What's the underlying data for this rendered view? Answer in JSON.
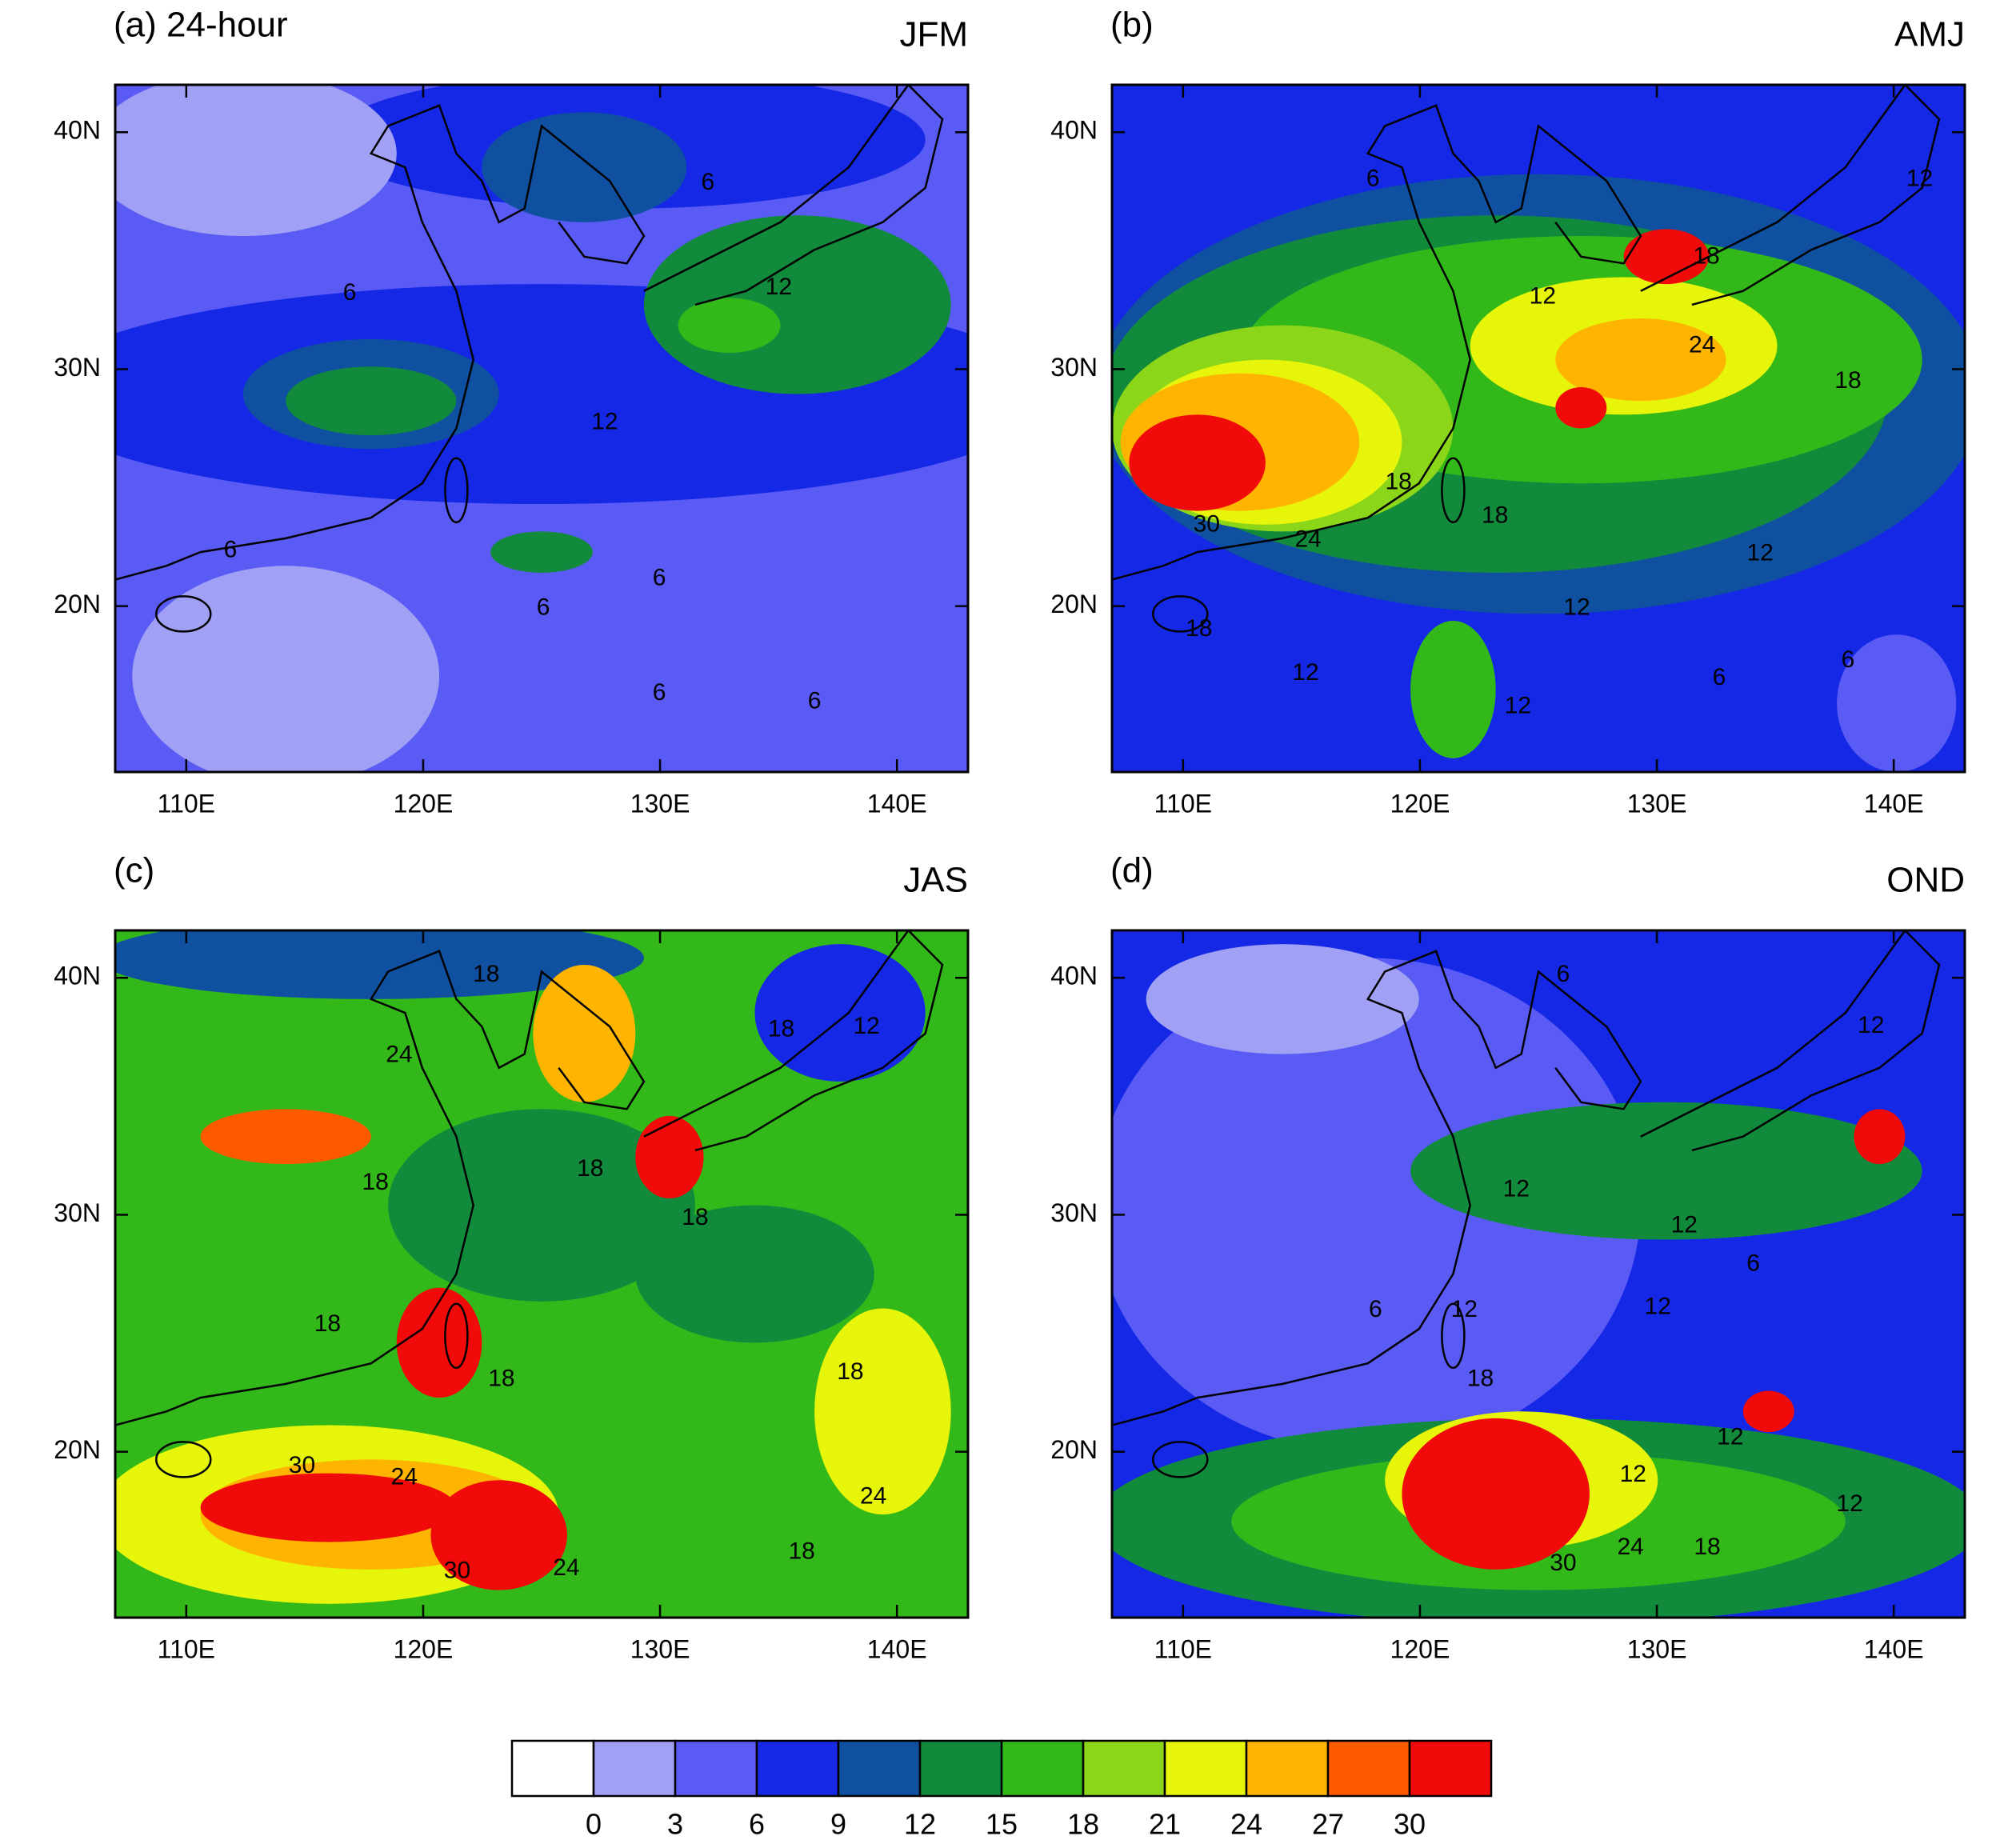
{
  "xlim": [
    107,
    143
  ],
  "ylim": [
    13,
    42
  ],
  "xticks": [
    {
      "value": 110,
      "label": "110E"
    },
    {
      "value": 120,
      "label": "120E"
    },
    {
      "value": 130,
      "label": "130E"
    },
    {
      "value": 140,
      "label": "140E"
    }
  ],
  "yticks": [
    {
      "value": 20,
      "label": "20N"
    },
    {
      "value": 30,
      "label": "30N"
    },
    {
      "value": 40,
      "label": "40N"
    }
  ],
  "panels": [
    {
      "label": "(a) 24-hour",
      "season": "JFM",
      "contour_labels": [
        6,
        12,
        6,
        12,
        6,
        6,
        6,
        6,
        6
      ]
    },
    {
      "label": "(b)",
      "season": "AMJ",
      "contour_labels": [
        6,
        12,
        18,
        12,
        24,
        18,
        18,
        18,
        30,
        24,
        12,
        12,
        18,
        12,
        6,
        6,
        12
      ]
    },
    {
      "label": "(c)",
      "season": "JAS",
      "contour_labels": [
        18,
        24,
        18,
        12,
        18,
        18,
        18,
        18,
        18,
        18,
        30,
        24,
        24,
        18,
        24,
        30
      ]
    },
    {
      "label": "(d)",
      "season": "OND",
      "contour_labels": [
        6,
        12,
        12,
        12,
        6,
        6,
        12,
        12,
        18,
        12,
        12,
        12,
        24,
        18,
        30
      ]
    }
  ],
  "colorbar": {
    "levels": [
      0,
      3,
      6,
      9,
      12,
      15,
      18,
      21,
      24,
      27,
      30
    ],
    "colors": [
      "#ffffff",
      "#a0a0f5",
      "#5a5af5",
      "#1428e6",
      "#0f50a0",
      "#118a3c",
      "#33b81a",
      "#8cd61a",
      "#e6f50a",
      "#ffb400",
      "#ff5a00",
      "#f00a0a"
    ]
  }
}
